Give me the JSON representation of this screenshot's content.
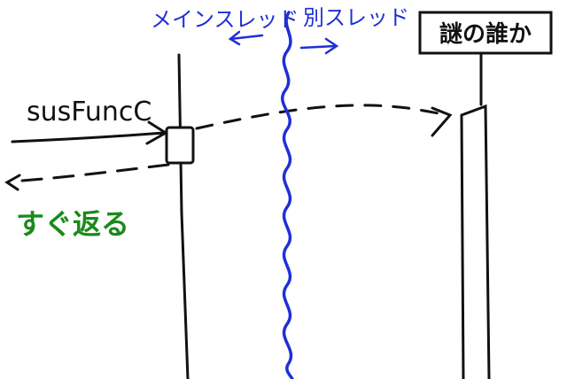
{
  "labels": {
    "main_thread": "メインスレッド",
    "other_thread": "別スレッド",
    "unknown_actor": "謎の誰か",
    "function_call": "susFuncC",
    "returns_immediately": "すぐ返る"
  },
  "colors": {
    "ink": "#111111",
    "thread_blue": "#1f2fd6",
    "return_green": "#1a8a1a"
  }
}
